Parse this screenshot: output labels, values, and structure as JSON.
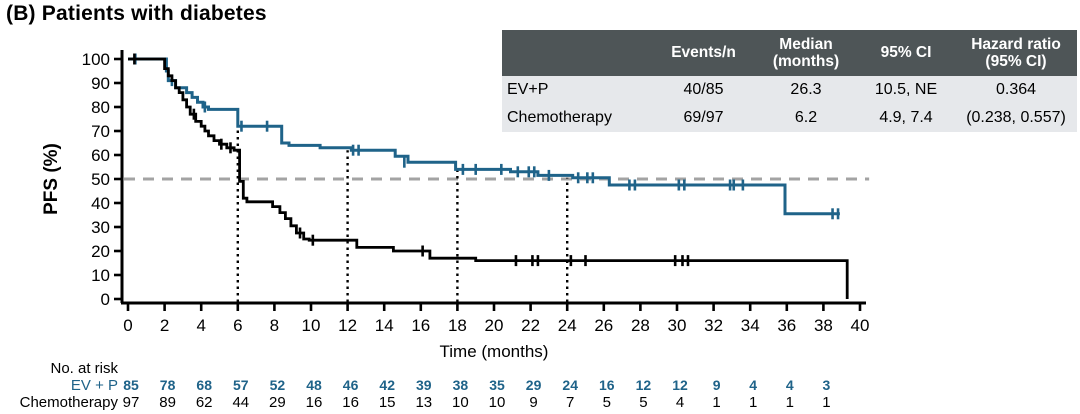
{
  "title": "(B) Patients with diabetes",
  "colors": {
    "ev_p": "#1f6389",
    "chemotherapy": "#000000",
    "table_header_bg": "#4e5557",
    "table_row_bg": "#e6e8eb",
    "reference_line": "#a3a3a3",
    "axis": "#000000"
  },
  "stats_table": {
    "headers": [
      "",
      "Events/n",
      "Median\n(months)",
      "95% CI",
      "Hazard ratio\n(95% CI)"
    ],
    "rows": [
      [
        "EV+P",
        "40/85",
        "26.3",
        "10.5, NE",
        "0.364"
      ],
      [
        "Chemotherapy",
        "69/97",
        "6.2",
        "4.9, 7.4",
        "(0.238, 0.557)"
      ]
    ]
  },
  "chart_data": {
    "type": "line",
    "subtype": "kaplan-meier-step",
    "xlabel": "Time (months)",
    "ylabel": "PFS (%)",
    "xlim": [
      0,
      40
    ],
    "ylim": [
      0,
      100
    ],
    "xtick_step": 2,
    "ytick_step": 10,
    "grid": false,
    "reference_h_line": {
      "y": 50,
      "x_start": 0,
      "x_end": 40.5,
      "style": "dashed",
      "color": "#a3a3a3"
    },
    "reference_v_lines": [
      {
        "x": 6,
        "y_top": 72
      },
      {
        "x": 12,
        "y_top": 62
      },
      {
        "x": 18,
        "y_top": 54
      },
      {
        "x": 24,
        "y_top": 50.5
      }
    ],
    "series": [
      {
        "name": "EV+P",
        "color": "#1f6389",
        "width": 3,
        "end_x": 38.9,
        "points": [
          [
            0,
            100
          ],
          [
            2.1,
            95
          ],
          [
            2.2,
            91
          ],
          [
            2.6,
            88
          ],
          [
            3.2,
            86
          ],
          [
            3.5,
            84
          ],
          [
            3.8,
            82
          ],
          [
            4.1,
            80
          ],
          [
            4.4,
            79
          ],
          [
            6.0,
            72
          ],
          [
            8.4,
            65
          ],
          [
            8.8,
            64
          ],
          [
            10.5,
            63
          ],
          [
            12.2,
            62
          ],
          [
            14.6,
            59.5
          ],
          [
            15.3,
            57
          ],
          [
            17.9,
            54
          ],
          [
            20.9,
            53
          ],
          [
            22.4,
            51.5
          ],
          [
            24.3,
            50.5
          ],
          [
            26.3,
            47.5
          ],
          [
            35.9,
            35.5
          ]
        ],
        "censors": [
          [
            0.4,
            100
          ],
          [
            2.4,
            91
          ],
          [
            4.2,
            80
          ],
          [
            6.2,
            72
          ],
          [
            7.6,
            72
          ],
          [
            12.3,
            62
          ],
          [
            12.6,
            62
          ],
          [
            15.1,
            57
          ],
          [
            18.3,
            54
          ],
          [
            19.0,
            54
          ],
          [
            20.4,
            54
          ],
          [
            21.3,
            53
          ],
          [
            21.9,
            53
          ],
          [
            22.2,
            53
          ],
          [
            23.0,
            51.5
          ],
          [
            24.6,
            50.5
          ],
          [
            25.1,
            50.5
          ],
          [
            25.4,
            50.5
          ],
          [
            27.4,
            47.5
          ],
          [
            27.7,
            47.5
          ],
          [
            30.1,
            47.5
          ],
          [
            30.4,
            47.5
          ],
          [
            32.9,
            47.5
          ],
          [
            33.1,
            47.5
          ],
          [
            33.6,
            47.5
          ],
          [
            38.5,
            35.5
          ],
          [
            38.8,
            35.5
          ]
        ]
      },
      {
        "name": "Chemotherapy",
        "color": "#000000",
        "width": 2.8,
        "end_x": 39.3,
        "points": [
          [
            0,
            100
          ],
          [
            2.0,
            96
          ],
          [
            2.2,
            93
          ],
          [
            2.4,
            91
          ],
          [
            2.6,
            88
          ],
          [
            2.8,
            86
          ],
          [
            3.0,
            83
          ],
          [
            3.2,
            80
          ],
          [
            3.4,
            77
          ],
          [
            3.7,
            74
          ],
          [
            4.0,
            72
          ],
          [
            4.2,
            70
          ],
          [
            4.4,
            68
          ],
          [
            4.7,
            66
          ],
          [
            5.0,
            64.5
          ],
          [
            5.4,
            63
          ],
          [
            5.8,
            62
          ],
          [
            6.1,
            49
          ],
          [
            6.3,
            42
          ],
          [
            6.5,
            40.5
          ],
          [
            7.9,
            38.5
          ],
          [
            8.3,
            36
          ],
          [
            8.6,
            33.5
          ],
          [
            8.9,
            30.5
          ],
          [
            9.2,
            27.5
          ],
          [
            9.6,
            25
          ],
          [
            9.9,
            24.5
          ],
          [
            12.5,
            21.5
          ],
          [
            14.5,
            20
          ],
          [
            16.5,
            17
          ],
          [
            19.0,
            16
          ],
          [
            39.3,
            0
          ]
        ],
        "censors": [
          [
            0.35,
            100
          ],
          [
            3.6,
            77
          ],
          [
            5.1,
            64.5
          ],
          [
            5.6,
            63
          ],
          [
            9.4,
            27.5
          ],
          [
            10.1,
            24.5
          ],
          [
            16.1,
            20
          ],
          [
            21.2,
            16
          ],
          [
            22.1,
            16
          ],
          [
            22.4,
            16
          ],
          [
            24.2,
            16
          ],
          [
            25.0,
            16
          ],
          [
            29.9,
            16
          ],
          [
            30.3,
            16
          ],
          [
            30.6,
            16
          ]
        ]
      }
    ]
  },
  "at_risk": {
    "label": "No. at risk",
    "months": [
      0,
      2,
      4,
      6,
      8,
      10,
      12,
      14,
      16,
      18,
      20,
      22,
      24,
      26,
      28,
      30,
      32,
      34,
      36,
      38
    ],
    "rows": [
      {
        "name": "EV + P",
        "color": "#1f6389",
        "bold": true,
        "values": [
          85,
          78,
          68,
          57,
          52,
          48,
          46,
          42,
          39,
          38,
          35,
          29,
          24,
          16,
          12,
          12,
          9,
          4,
          4,
          3
        ]
      },
      {
        "name": "Chemotherapy",
        "color": "#000000",
        "bold": false,
        "values": [
          97,
          89,
          62,
          44,
          29,
          16,
          16,
          15,
          13,
          10,
          10,
          9,
          7,
          5,
          5,
          4,
          1,
          1,
          1,
          1
        ]
      }
    ]
  }
}
